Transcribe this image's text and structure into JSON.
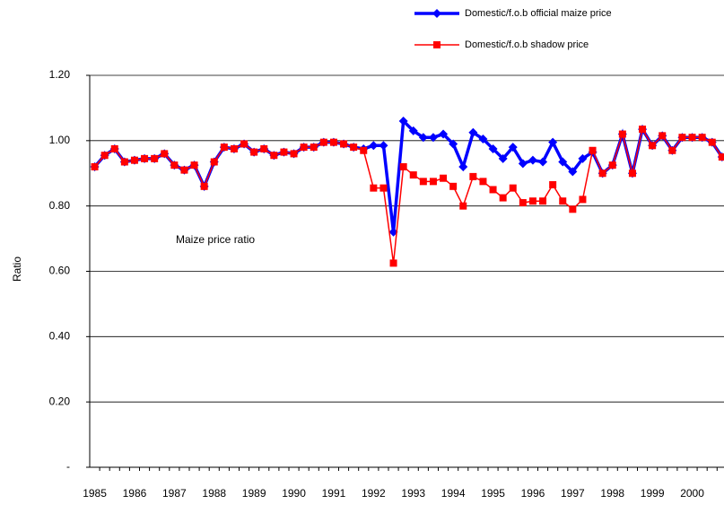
{
  "chart_data": {
    "type": "line",
    "annotation": "Maize price ratio",
    "y_label": "Ratio",
    "categories": [
      "1985",
      null,
      null,
      null,
      "1986",
      null,
      null,
      null,
      "1987",
      null,
      null,
      null,
      "1988",
      null,
      null,
      null,
      "1989",
      null,
      null,
      null,
      "1990",
      null,
      null,
      null,
      "1991",
      null,
      null,
      null,
      "1992",
      null,
      null,
      null,
      "1993",
      null,
      null,
      null,
      "1994",
      null,
      null,
      null,
      "1995",
      null,
      null,
      null,
      "1996",
      null,
      null,
      null,
      "1997",
      null,
      null,
      null,
      "1998",
      null,
      null,
      null,
      "1999",
      null,
      null,
      null,
      "2000",
      null,
      null,
      null
    ],
    "series": [
      {
        "name": "Domestic/f.o.b official maize price",
        "color": "#0000ff",
        "marker": "diamond",
        "values": [
          0.92,
          0.955,
          0.975,
          0.935,
          0.94,
          0.945,
          0.945,
          0.96,
          0.925,
          0.91,
          0.925,
          0.86,
          0.935,
          0.98,
          0.975,
          0.99,
          0.965,
          0.975,
          0.955,
          0.965,
          0.96,
          0.98,
          0.98,
          0.995,
          0.995,
          0.99,
          0.98,
          0.975,
          0.985,
          0.985,
          0.72,
          1.06,
          1.03,
          1.01,
          1.01,
          1.02,
          0.99,
          0.92,
          1.025,
          1.005,
          0.975,
          0.945,
          0.98,
          0.93,
          0.94,
          0.935,
          0.995,
          0.935,
          0.905,
          0.945,
          0.965,
          0.9,
          0.925,
          1.02,
          0.9,
          1.035,
          0.985,
          1.015,
          0.97,
          1.01,
          1.01,
          1.01,
          0.995,
          0.95
        ]
      },
      {
        "name": "Domestic/f.o.b shadow price",
        "color": "#ff0000",
        "marker": "square",
        "values": [
          0.92,
          0.955,
          0.975,
          0.935,
          0.94,
          0.945,
          0.945,
          0.96,
          0.925,
          0.91,
          0.925,
          0.86,
          0.935,
          0.98,
          0.975,
          0.99,
          0.965,
          0.975,
          0.955,
          0.965,
          0.96,
          0.98,
          0.98,
          0.995,
          0.995,
          0.99,
          0.98,
          0.97,
          0.855,
          0.855,
          0.625,
          0.92,
          0.895,
          0.875,
          0.875,
          0.885,
          0.86,
          0.8,
          0.89,
          0.875,
          0.85,
          0.825,
          0.855,
          0.81,
          0.815,
          0.815,
          0.865,
          0.815,
          0.79,
          0.82,
          0.97,
          0.9,
          0.925,
          1.02,
          0.9,
          1.035,
          0.985,
          1.015,
          0.97,
          1.01,
          1.01,
          1.01,
          0.995,
          0.95
        ]
      }
    ],
    "ylim": [
      0,
      1.2
    ],
    "yticks": [
      {
        "value": 0,
        "label": "-"
      },
      {
        "value": 0.2,
        "label": "0.20"
      },
      {
        "value": 0.4,
        "label": "0.40"
      },
      {
        "value": 0.6,
        "label": "0.60"
      },
      {
        "value": 0.8,
        "label": "0.80"
      },
      {
        "value": 1.0,
        "label": "1.00"
      },
      {
        "value": 1.2,
        "label": "1.20"
      }
    ],
    "grid": true,
    "legend": "top"
  }
}
